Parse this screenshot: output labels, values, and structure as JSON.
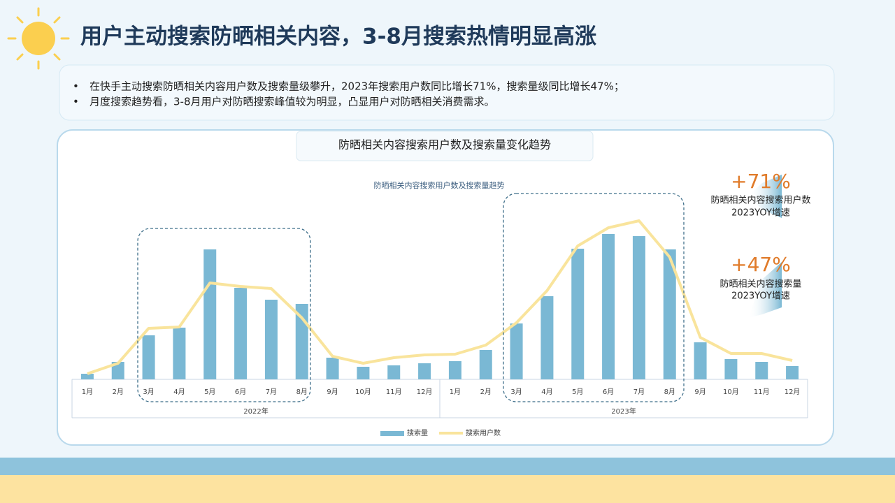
{
  "title": "用户主动搜索防晒相关内容，3-8月搜索热情明显高涨",
  "bullets": [
    "在快手主动搜索防晒相关内容用户数及搜索量级攀升，2023年搜索用户数同比增长71%，搜索量级同比增长47%；",
    "月度搜索趋势看，3-8月用户对防晒搜索峰值较为明显，凸显用户对防晒相关消费需求。"
  ],
  "chart_data": {
    "type": "combo",
    "title": "防晒相关内容搜索用户数及搜索量变化趋势",
    "subtitle": "防晒相关内容搜索用户数及搜索量趋势",
    "categories": [
      "1月",
      "2月",
      "3月",
      "4月",
      "5月",
      "6月",
      "7月",
      "8月",
      "9月",
      "10月",
      "11月",
      "12月",
      "1月",
      "2月",
      "3月",
      "4月",
      "5月",
      "6月",
      "7月",
      "8月",
      "9月",
      "10月",
      "11月",
      "12月"
    ],
    "groups": [
      "2022年",
      "2023年"
    ],
    "series": [
      {
        "name": "搜索量",
        "type": "bar",
        "color": "#7ab8d4",
        "values": [
          8,
          25,
          63,
          74,
          186,
          131,
          114,
          108,
          31,
          18,
          20,
          23,
          26,
          42,
          80,
          119,
          187,
          208,
          205,
          186,
          53,
          29,
          25,
          19
        ]
      },
      {
        "name": "搜索用户数",
        "type": "line",
        "color": "#f9e49c",
        "values": [
          8,
          23,
          73,
          75,
          138,
          133,
          130,
          88,
          33,
          23,
          31,
          35,
          36,
          49,
          81,
          127,
          191,
          217,
          227,
          175,
          60,
          37,
          37,
          27
        ]
      }
    ],
    "legend": "bottom"
  },
  "callouts": [
    {
      "value": "+71%",
      "label": "防晒相关内容搜索用户数",
      "note": "2023YOY增速"
    },
    {
      "value": "+47%",
      "label": "防晒相关内容搜索量",
      "note": "2023YOY增速"
    }
  ]
}
